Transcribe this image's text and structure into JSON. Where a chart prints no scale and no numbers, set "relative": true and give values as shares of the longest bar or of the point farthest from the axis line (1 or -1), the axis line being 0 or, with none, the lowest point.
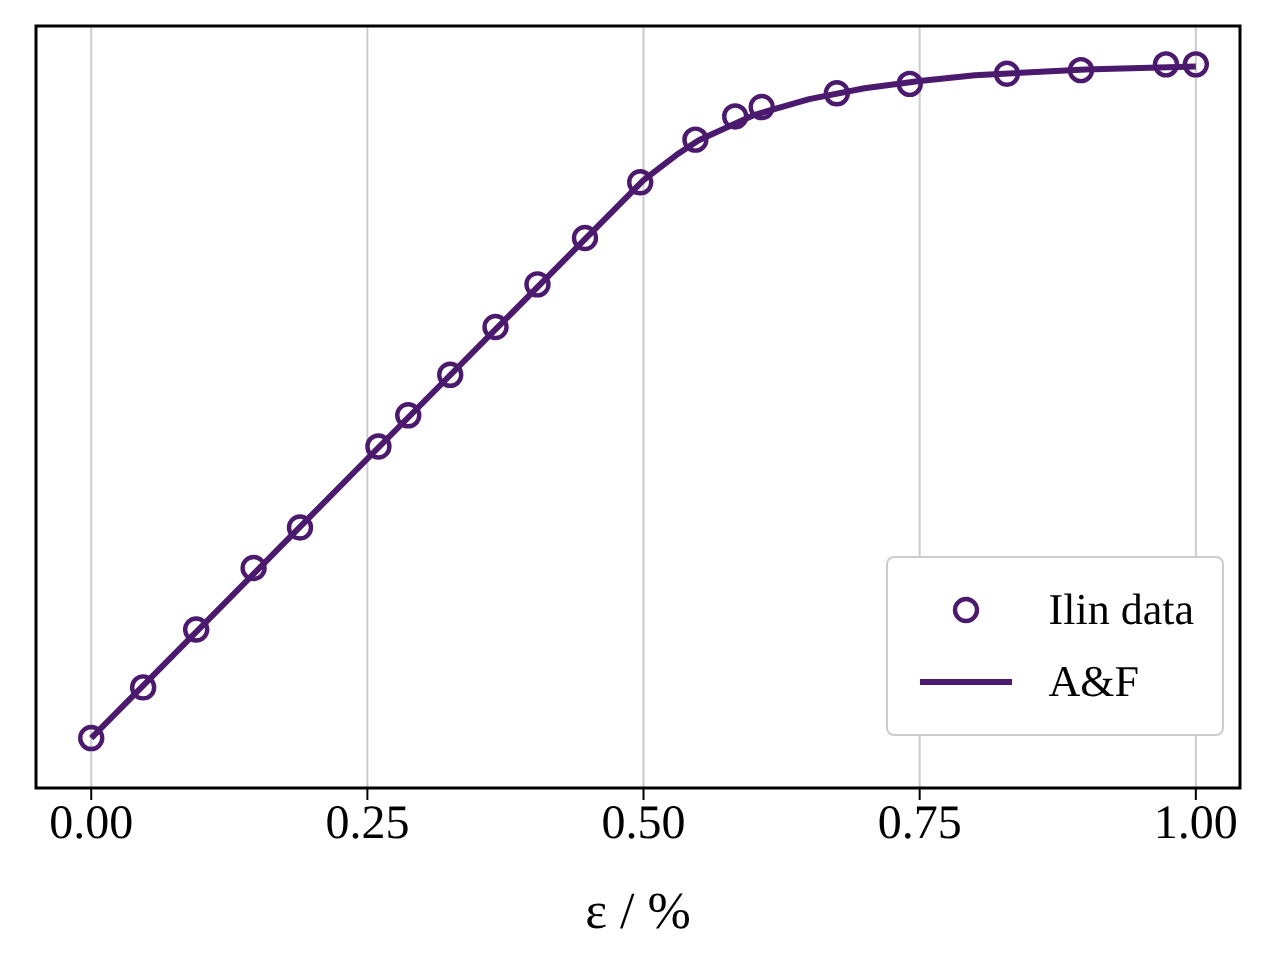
{
  "chart_data": {
    "type": "line",
    "relative": true,
    "xlabel": "ε / %",
    "xlim": [
      -0.05,
      1.04
    ],
    "xticks": [
      {
        "value": 0,
        "label": "0.00"
      },
      {
        "value": 0.25,
        "label": "0.25"
      },
      {
        "value": 0.5,
        "label": "0.50"
      },
      {
        "value": 0.75,
        "label": "0.75"
      },
      {
        "value": 1,
        "label": "1.00"
      }
    ],
    "tick_labels": "x",
    "grid": true,
    "legend": "bottom right",
    "series": [
      {
        "type": "scatter",
        "name": "Ilin data",
        "color": "#4b1a6e",
        "marker": "circle",
        "x": [
          0,
          0.047,
          0.095,
          0.147,
          0.189,
          0.26,
          0.287,
          0.325,
          0.366,
          0.404,
          0.447,
          0.497,
          0.547,
          0.583,
          0.607,
          0.675,
          0.741,
          0.829,
          0.896,
          0.973,
          1.0
        ],
        "values": [
          0.069,
          0.139,
          0.219,
          0.304,
          0.36,
          0.472,
          0.515,
          0.571,
          0.637,
          0.696,
          0.76,
          0.837,
          0.896,
          0.928,
          0.941,
          0.96,
          0.973,
          0.987,
          0.992,
          1.0,
          1.0
        ]
      },
      {
        "type": "line",
        "name": "A&F",
        "color": "#4b1a6e",
        "marker": "none",
        "line_style": "solid",
        "x": [
          0,
          0.25,
          0.5,
          0.53,
          0.55,
          0.6,
          0.65,
          0.7,
          0.75,
          0.8,
          0.9,
          1.0
        ],
        "values": [
          0.069,
          0.455,
          0.84,
          0.875,
          0.895,
          0.93,
          0.952,
          0.967,
          0.977,
          0.985,
          0.993,
          0.997
        ]
      }
    ]
  }
}
